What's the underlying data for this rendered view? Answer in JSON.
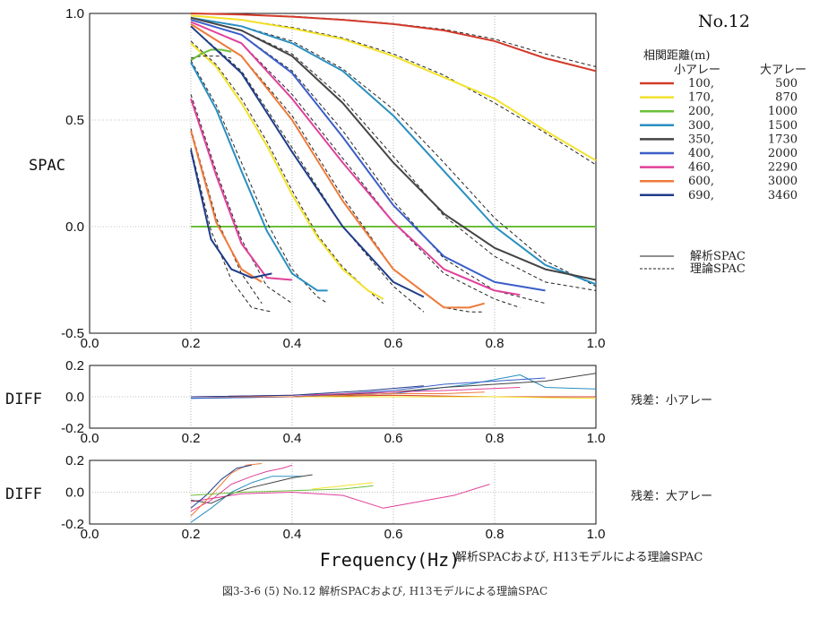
{
  "figure": {
    "no_label": "No.12",
    "legend_header": "相関距離(m)",
    "legend_col_small": "小アレー",
    "legend_col_large": "大アレー",
    "legend_style_analysis": "解析SPAC",
    "legend_style_theory": "理論SPAC",
    "note_small": "残差：小アレー",
    "note_large": "残差：大アレー",
    "xlabel": "Frequency(Hz)",
    "bottom_note": "解析SPACおよび, H13モデルによる理論SPAC",
    "caption": "図3-3-6 (5) No.12 解析SPACおよび, H13モデルによる理論SPAC"
  },
  "chart_data": [
    {
      "type": "line",
      "ylabel": "SPAC",
      "xlim": [
        0.0,
        1.0
      ],
      "ylim": [
        -0.5,
        1.0
      ],
      "x_ticks": [
        "0.0",
        "0.2",
        "0.4",
        "0.6",
        "0.8",
        "1.0"
      ],
      "y_ticks": [
        "1.0",
        "0.5",
        "0.0",
        "-0.5"
      ],
      "y_tick_values": [
        1.0,
        0.5,
        0.0,
        -0.5
      ],
      "grid": true,
      "legend": [
        {
          "small": "100,",
          "large": "500",
          "color": "#d23a2a"
        },
        {
          "small": "170,",
          "large": "870",
          "color": "#f2e22a"
        },
        {
          "small": "200,",
          "large": "1000",
          "color": "#6cbf3a"
        },
        {
          "small": "300,",
          "large": "1500",
          "color": "#2a8fbf"
        },
        {
          "small": "350,",
          "large": "1730",
          "color": "#444444"
        },
        {
          "small": "400,",
          "large": "2000",
          "color": "#3a5ec9"
        },
        {
          "small": "460,",
          "large": "2290",
          "color": "#e0409a"
        },
        {
          "small": "600,",
          "large": "3000",
          "color": "#ee7a3a"
        },
        {
          "small": "690,",
          "large": "3460",
          "color": "#1f3c88"
        }
      ],
      "series": [
        {
          "small_array": "100",
          "large_array": "500",
          "color": "#d23a2a",
          "x": [
            0.2,
            0.3,
            0.4,
            0.5,
            0.6,
            0.7,
            0.8,
            0.9,
            1.0
          ],
          "y": [
            1.0,
            0.995,
            0.985,
            0.97,
            0.95,
            0.92,
            0.87,
            0.79,
            0.73
          ],
          "theory_y": [
            1.0,
            0.995,
            0.987,
            0.972,
            0.952,
            0.925,
            0.88,
            0.81,
            0.75
          ]
        },
        {
          "small_array": "170",
          "large_array": "870",
          "color": "#f2e22a",
          "x": [
            0.2,
            0.3,
            0.4,
            0.5,
            0.6,
            0.7,
            0.8,
            0.9,
            1.0
          ],
          "y": [
            0.99,
            0.97,
            0.93,
            0.88,
            0.8,
            0.7,
            0.6,
            0.45,
            0.31
          ],
          "theory_y": [
            0.99,
            0.97,
            0.935,
            0.885,
            0.81,
            0.71,
            0.58,
            0.44,
            0.29
          ]
        },
        {
          "small_array": "170",
          "large_array": "870",
          "color": "#f2e22a",
          "x": [
            0.2,
            0.25,
            0.3,
            0.35,
            0.4,
            0.45,
            0.5,
            0.55,
            0.58
          ],
          "y": [
            0.86,
            0.75,
            0.58,
            0.38,
            0.15,
            -0.05,
            -0.2,
            -0.3,
            -0.34
          ],
          "theory_y": [
            0.87,
            0.76,
            0.6,
            0.4,
            0.17,
            -0.04,
            -0.19,
            -0.3,
            -0.36
          ]
        },
        {
          "small_array": "200",
          "large_array": "1000",
          "color": "#6cbf3a",
          "x": [
            0.2,
            0.22,
            0.24,
            0.26,
            0.28
          ],
          "y": [
            0.78,
            0.81,
            0.83,
            0.83,
            0.82
          ],
          "theory_y": [
            0.79,
            0.8,
            0.8,
            0.8,
            0.79
          ]
        },
        {
          "small_array": "200",
          "large_array": "1000",
          "color": "#6cbf3a",
          "x": [
            0.2,
            1.0
          ],
          "y": [
            0.0,
            0.0
          ],
          "theory_y": []
        },
        {
          "small_array": "300",
          "large_array": "1500",
          "color": "#2a8fbf",
          "x": [
            0.2,
            0.3,
            0.4,
            0.5,
            0.6,
            0.7,
            0.8,
            0.9,
            1.0
          ],
          "y": [
            0.98,
            0.94,
            0.86,
            0.73,
            0.52,
            0.26,
            0.0,
            -0.18,
            -0.27
          ],
          "theory_y": [
            0.98,
            0.94,
            0.87,
            0.74,
            0.55,
            0.3,
            0.04,
            -0.16,
            -0.28
          ]
        },
        {
          "small_array": "300",
          "large_array": "1500",
          "color": "#2a8fbf",
          "x": [
            0.2,
            0.25,
            0.3,
            0.35,
            0.4,
            0.45,
            0.47
          ],
          "y": [
            0.77,
            0.55,
            0.26,
            -0.02,
            -0.22,
            -0.3,
            -0.3
          ],
          "theory_y": [
            0.78,
            0.57,
            0.3,
            0.02,
            -0.2,
            -0.33,
            -0.36
          ]
        },
        {
          "small_array": "350",
          "large_array": "1730",
          "color": "#444444",
          "x": [
            0.2,
            0.3,
            0.4,
            0.5,
            0.6,
            0.7,
            0.8,
            0.9,
            1.0
          ],
          "y": [
            0.98,
            0.92,
            0.8,
            0.58,
            0.3,
            0.06,
            -0.1,
            -0.2,
            -0.25
          ],
          "theory_y": [
            0.98,
            0.92,
            0.81,
            0.6,
            0.33,
            0.05,
            -0.14,
            -0.26,
            -0.3
          ]
        },
        {
          "small_array": "400",
          "large_array": "2000",
          "color": "#3a5ec9",
          "x": [
            0.2,
            0.3,
            0.4,
            0.5,
            0.6,
            0.7,
            0.8,
            0.9
          ],
          "y": [
            0.97,
            0.9,
            0.72,
            0.42,
            0.1,
            -0.14,
            -0.26,
            -0.3
          ],
          "theory_y": [
            0.97,
            0.9,
            0.73,
            0.45,
            0.12,
            -0.15,
            -0.3,
            -0.36
          ]
        },
        {
          "small_array": "460",
          "large_array": "2290",
          "color": "#e0409a",
          "x": [
            0.2,
            0.3,
            0.4,
            0.5,
            0.6,
            0.7,
            0.8,
            0.85
          ],
          "y": [
            0.96,
            0.86,
            0.6,
            0.3,
            0.02,
            -0.2,
            -0.3,
            -0.32
          ],
          "theory_y": [
            0.96,
            0.86,
            0.62,
            0.32,
            0.02,
            -0.22,
            -0.34,
            -0.38
          ]
        },
        {
          "small_array": "460",
          "large_array": "2290",
          "color": "#e0409a",
          "x": [
            0.2,
            0.25,
            0.3,
            0.35,
            0.4
          ],
          "y": [
            0.6,
            0.24,
            -0.08,
            -0.24,
            -0.25
          ],
          "theory_y": [
            0.62,
            0.26,
            -0.06,
            -0.28,
            -0.36
          ]
        },
        {
          "small_array": "600",
          "large_array": "3000",
          "color": "#ee7a3a",
          "x": [
            0.2,
            0.3,
            0.4,
            0.5,
            0.6,
            0.7,
            0.75,
            0.78
          ],
          "y": [
            0.95,
            0.8,
            0.5,
            0.12,
            -0.2,
            -0.38,
            -0.38,
            -0.36
          ],
          "theory_y": [
            0.95,
            0.8,
            0.52,
            0.14,
            -0.2,
            -0.38,
            -0.4,
            -0.4
          ]
        },
        {
          "small_array": "600",
          "large_array": "3000",
          "color": "#ee7a3a",
          "x": [
            0.2,
            0.25,
            0.3,
            0.34
          ],
          "y": [
            0.45,
            0.02,
            -0.2,
            -0.26
          ],
          "theory_y": [
            0.46,
            0.04,
            -0.22,
            -0.36
          ]
        },
        {
          "small_array": "690",
          "large_array": "3460",
          "color": "#1f3c88",
          "x": [
            0.2,
            0.3,
            0.4,
            0.5,
            0.6,
            0.66
          ],
          "y": [
            0.94,
            0.72,
            0.35,
            0.0,
            -0.26,
            -0.33
          ],
          "theory_y": [
            0.94,
            0.73,
            0.37,
            0.0,
            -0.28,
            -0.4
          ]
        },
        {
          "small_array": "690",
          "large_array": "3460",
          "color": "#1f3c88",
          "x": [
            0.2,
            0.24,
            0.28,
            0.32,
            0.36
          ],
          "y": [
            0.36,
            -0.06,
            -0.2,
            -0.24,
            -0.22
          ],
          "theory_y": [
            0.37,
            -0.02,
            -0.25,
            -0.38,
            -0.4
          ]
        }
      ]
    },
    {
      "type": "line",
      "ylabel": "DIFF",
      "xlim": [
        0.0,
        1.0
      ],
      "ylim": [
        -0.2,
        0.2
      ],
      "x_ticks": [
        "0.0",
        "0.2",
        "0.4",
        "0.6",
        "0.8",
        "1.0"
      ],
      "y_ticks": [
        "0.2",
        "0.0",
        "-0.2"
      ],
      "y_tick_values": [
        0.2,
        0.0,
        -0.2
      ],
      "grid": true,
      "series": [
        {
          "small_array": "100",
          "color": "#d23a2a",
          "x": [
            0.2,
            0.4,
            0.6,
            0.8,
            1.0
          ],
          "y": [
            0.0,
            0.0,
            0.01,
            0.0,
            0.0
          ]
        },
        {
          "small_array": "170",
          "color": "#f2e22a",
          "x": [
            0.2,
            0.5,
            0.7,
            0.8,
            1.0
          ],
          "y": [
            0.0,
            0.0,
            0.0,
            0.0,
            -0.01
          ]
        },
        {
          "small_array": "300",
          "color": "#2a8fbf",
          "x": [
            0.2,
            0.4,
            0.6,
            0.75,
            0.85,
            0.9,
            1.0
          ],
          "y": [
            -0.01,
            0.0,
            0.02,
            0.08,
            0.14,
            0.06,
            0.05
          ]
        },
        {
          "small_array": "350",
          "color": "#444444",
          "x": [
            0.2,
            0.4,
            0.6,
            0.7,
            0.8,
            0.9,
            1.0
          ],
          "y": [
            0.0,
            0.0,
            0.03,
            0.06,
            0.08,
            0.1,
            0.15
          ]
        },
        {
          "small_array": "400",
          "color": "#3a5ec9",
          "x": [
            0.2,
            0.4,
            0.6,
            0.7,
            0.8,
            0.9
          ],
          "y": [
            -0.01,
            0.0,
            0.04,
            0.08,
            0.1,
            0.12
          ]
        },
        {
          "small_array": "460",
          "color": "#e0409a",
          "x": [
            0.2,
            0.4,
            0.6,
            0.7,
            0.85
          ],
          "y": [
            0.0,
            0.01,
            0.03,
            0.04,
            0.06
          ]
        },
        {
          "small_array": "600",
          "color": "#ee7a3a",
          "x": [
            0.2,
            0.4,
            0.6,
            0.7,
            0.78
          ],
          "y": [
            0.0,
            0.0,
            0.02,
            0.02,
            0.03
          ]
        },
        {
          "small_array": "690",
          "color": "#1f3c88",
          "x": [
            0.2,
            0.4,
            0.55,
            0.66
          ],
          "y": [
            0.0,
            0.01,
            0.04,
            0.07
          ]
        }
      ]
    },
    {
      "type": "line",
      "ylabel": "DIFF",
      "xlabel": "Frequency(Hz)",
      "xlim": [
        0.0,
        1.0
      ],
      "ylim": [
        -0.2,
        0.2
      ],
      "x_ticks": [
        "0.0",
        "0.2",
        "0.4",
        "0.6",
        "0.8",
        "1.0"
      ],
      "y_ticks": [
        "0.2",
        "0.0",
        "-0.2"
      ],
      "y_tick_values": [
        0.2,
        0.0,
        -0.2
      ],
      "grid": true,
      "series": [
        {
          "large_array": "2290",
          "color": "#e0409a",
          "x": [
            0.2,
            0.3,
            0.4,
            0.5,
            0.58,
            0.65,
            0.72,
            0.79
          ],
          "y": [
            -0.06,
            -0.01,
            0.0,
            -0.02,
            -0.1,
            -0.06,
            -0.02,
            0.05
          ]
        },
        {
          "large_array": "1500",
          "color": "#2a8fbf",
          "x": [
            0.2,
            0.24,
            0.28,
            0.32,
            0.36,
            0.42
          ],
          "y": [
            -0.19,
            -0.1,
            0.0,
            0.06,
            0.1,
            0.1
          ]
        },
        {
          "large_array": "1730",
          "color": "#444444",
          "x": [
            0.2,
            0.24,
            0.28,
            0.32,
            0.36,
            0.4,
            0.44
          ],
          "y": [
            -0.05,
            -0.07,
            -0.01,
            0.03,
            0.06,
            0.09,
            0.11
          ]
        },
        {
          "large_array": "2290",
          "color": "#e0409a",
          "x": [
            0.2,
            0.24,
            0.28,
            0.32,
            0.35,
            0.38,
            0.4
          ],
          "y": [
            -0.12,
            -0.05,
            0.05,
            0.1,
            0.13,
            0.15,
            0.17
          ]
        },
        {
          "large_array": "3000",
          "color": "#ee7a3a",
          "x": [
            0.2,
            0.24,
            0.28,
            0.31,
            0.34
          ],
          "y": [
            -0.15,
            -0.02,
            0.12,
            0.17,
            0.18
          ]
        },
        {
          "large_array": "3460",
          "color": "#1f3c88",
          "x": [
            0.2,
            0.23,
            0.26,
            0.29,
            0.32
          ],
          "y": [
            -0.1,
            -0.02,
            0.08,
            0.15,
            0.17
          ]
        },
        {
          "large_array": "1000",
          "color": "#6cbf3a",
          "x": [
            0.2,
            0.3,
            0.4,
            0.5,
            0.56
          ],
          "y": [
            -0.02,
            0.0,
            0.01,
            0.02,
            0.04
          ]
        },
        {
          "large_array": "870",
          "color": "#f2e22a",
          "x": [
            0.44,
            0.5,
            0.56
          ],
          "y": [
            0.02,
            0.04,
            0.06
          ]
        }
      ]
    }
  ]
}
